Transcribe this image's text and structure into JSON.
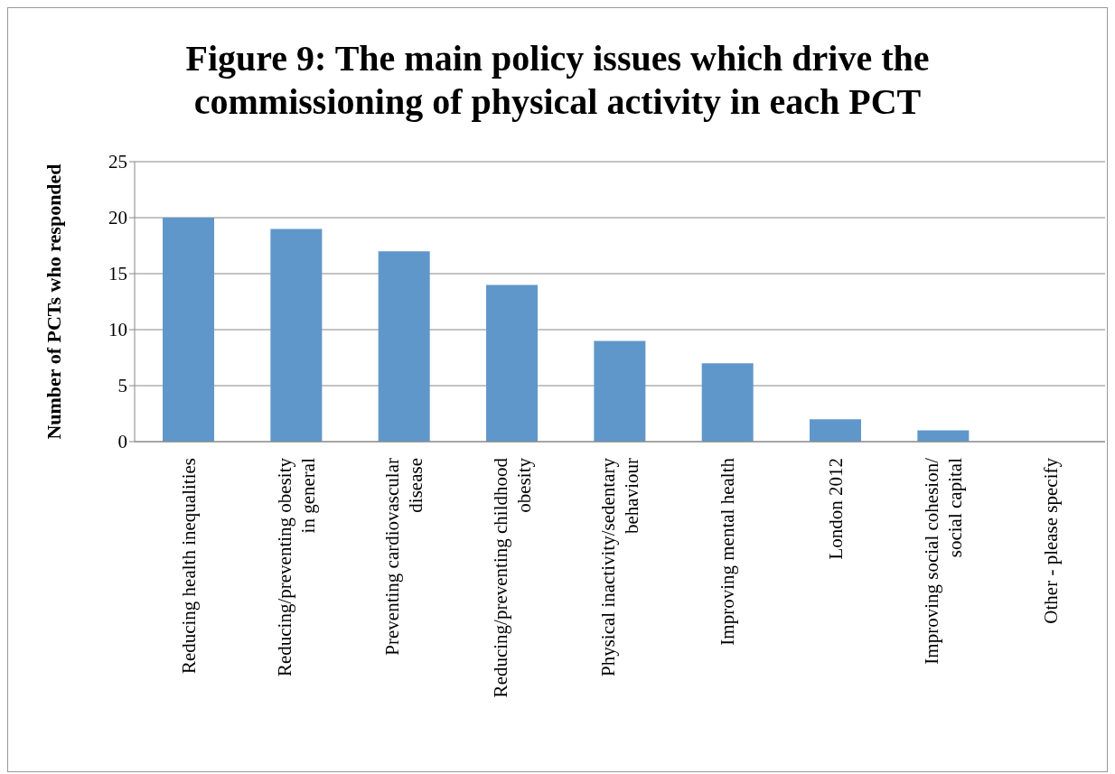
{
  "chart_data": {
    "type": "bar",
    "title": "Figure 9: The main policy issues which drive the commissioning of physical activity in each PCT",
    "ylabel": "Number of PCTs who responded",
    "categories": [
      "Reducing health inequalities",
      "Reducing/preventing obesity in general",
      "Preventing cardiovascular disease",
      "Reducing/preventing childhood obesity",
      "Physical inactivity/sedentary behaviour",
      "Improving mental health",
      "London 2012",
      "Improving social cohesion/ social capital",
      "Other - please specify"
    ],
    "values": [
      20,
      19,
      17,
      14,
      9,
      7,
      2,
      1,
      0
    ],
    "color": "#6097cb",
    "ylim": [
      0,
      25
    ],
    "yticks": [
      0,
      5,
      10,
      15,
      20,
      25
    ],
    "grid": "y"
  }
}
